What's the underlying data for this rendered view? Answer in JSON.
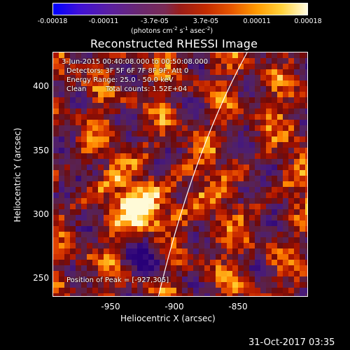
{
  "colorbar": {
    "tick_labels": [
      "-0.00018",
      "-0.00011",
      "-3.7e-05",
      "3.7e-05",
      "0.00011",
      "0.00018"
    ],
    "unit_label": "(photons cm",
    "unit_exp1": "-2",
    "unit_mid": " s",
    "unit_exp2": "-1",
    "unit_mid2": " asec",
    "unit_exp3": "-2",
    "unit_end": ")"
  },
  "title": "Reconstructed RHESSI Image",
  "info": {
    "time_range": "3-Jun-2015 00:40:08.000 to 00:50:08.000",
    "detectors": "Detectors: 3F 5F 6F 7F 8F 9F, Att 0",
    "energy_range": "Energy Range: 25.0 - 50.0 keV",
    "method": "Clean",
    "total_counts": "Total counts: 1.52E+04",
    "peak_position": "Position of Peak = [-927,305]"
  },
  "axes": {
    "y_label": "Heliocentric Y (arcsec)",
    "x_label": "Heliocentric X (arcsec)",
    "y_ticks": [
      "250",
      "300",
      "350",
      "400"
    ],
    "x_ticks": [
      "-950",
      "-900",
      "-850"
    ]
  },
  "footer_date": "31-Oct-2017 03:35",
  "colors": {
    "background": "#000000",
    "limb_line": "#ffffff"
  }
}
